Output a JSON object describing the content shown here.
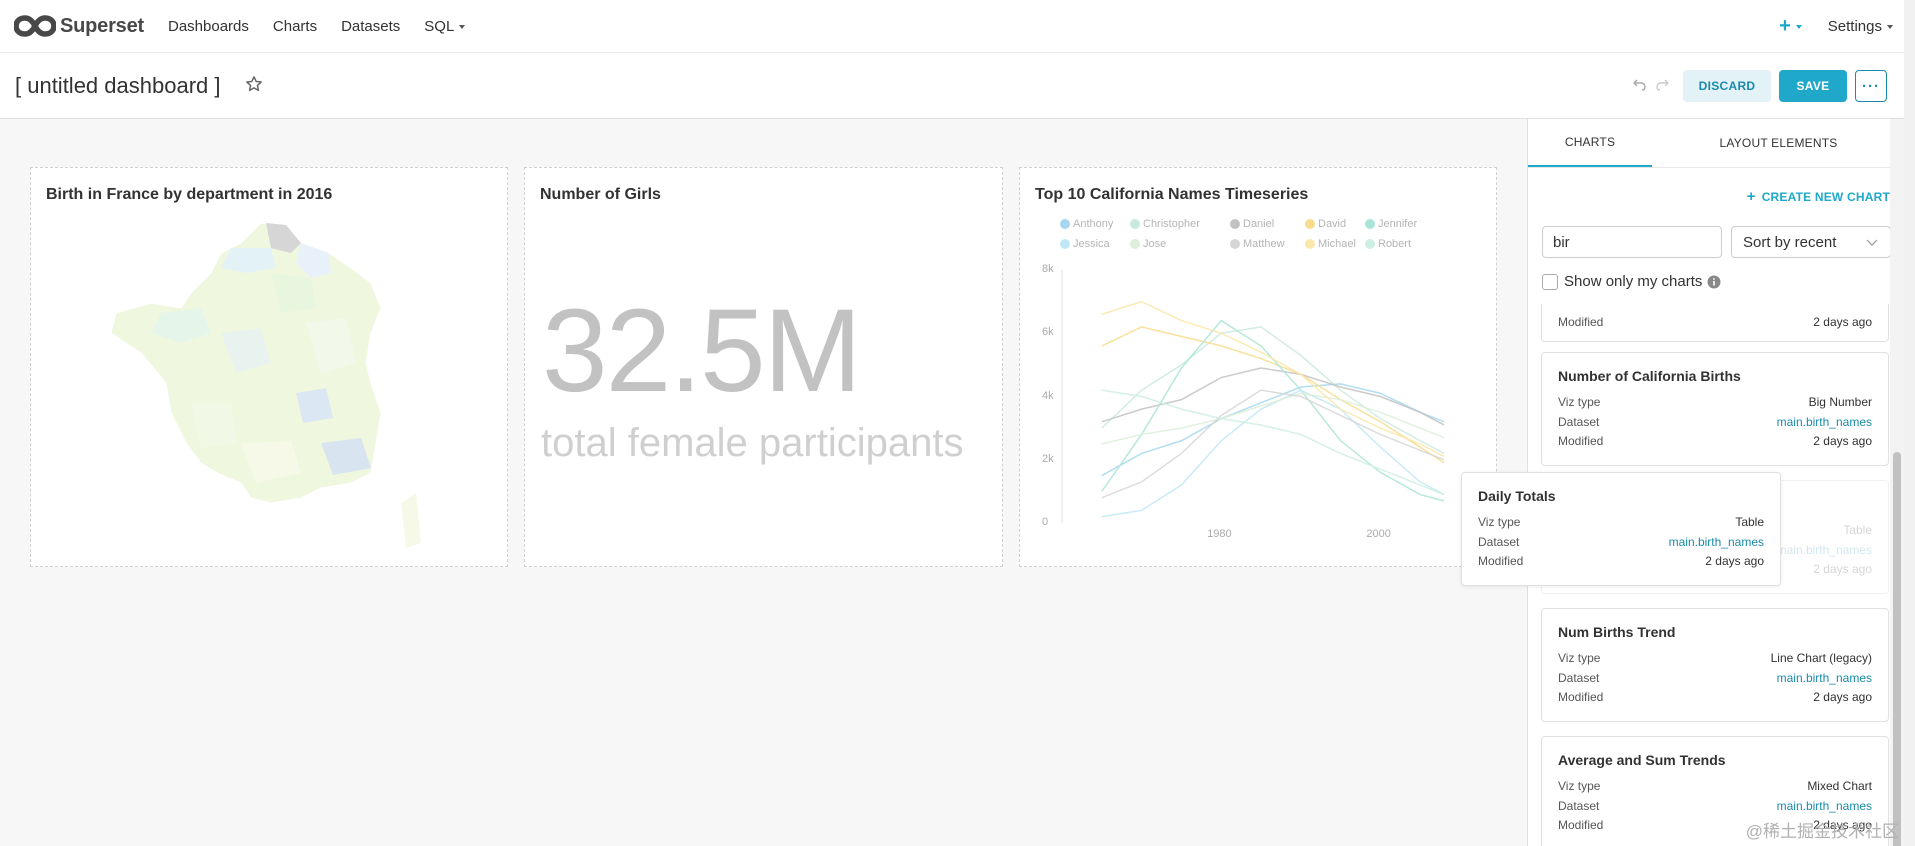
{
  "nav": {
    "brand": "Superset",
    "links": [
      "Dashboards",
      "Charts",
      "Datasets",
      "SQL"
    ],
    "plus": "+",
    "settings": "Settings"
  },
  "header": {
    "title": "[ untitled dashboard ]",
    "discard_label": "DISCARD",
    "save_label": "SAVE",
    "more_label": "···"
  },
  "charts": [
    {
      "title": "Birth in France by department in 2016"
    },
    {
      "title": "Number of Girls",
      "big_number": "32.5M",
      "subheader": "total female participants"
    },
    {
      "title": "Top 10 California Names Timeseries",
      "legend": [
        "Anthony",
        "Christopher",
        "Daniel",
        "David",
        "Jennifer",
        "Jessica",
        "Jose",
        "Matthew",
        "Michael",
        "Robert"
      ],
      "legend_colors": [
        "#a5d7f0",
        "#c9eadc",
        "#c2c2c2",
        "#f7dc8c",
        "#a9e4d6",
        "#bfe7f5",
        "#dcefd9",
        "#d6d6d6",
        "#f9e8a9",
        "#cdeee2"
      ],
      "y_ticks": [
        "8k",
        "6k",
        "4k",
        "2k",
        "0"
      ],
      "x_ticks": [
        "1980",
        "2000"
      ]
    }
  ],
  "chart_data": {
    "type": "line",
    "title": "Top 10 California Names Timeseries",
    "xlabel": "",
    "ylabel": "",
    "x": [
      1965,
      1970,
      1975,
      1980,
      1985,
      1990,
      1995,
      2000,
      2005,
      2008
    ],
    "ylim": [
      0,
      8000
    ],
    "series": [
      {
        "name": "Anthony",
        "values": [
          1500,
          2200,
          2600,
          3300,
          3800,
          4300,
          4400,
          4100,
          3500,
          3200
        ]
      },
      {
        "name": "Christopher",
        "values": [
          3000,
          4200,
          5000,
          6000,
          6200,
          5300,
          4200,
          3300,
          2600,
          2200
        ]
      },
      {
        "name": "Daniel",
        "values": [
          3200,
          3600,
          3900,
          4600,
          4900,
          4700,
          4300,
          4000,
          3500,
          3100
        ]
      },
      {
        "name": "David",
        "values": [
          5600,
          6200,
          5900,
          5600,
          5200,
          4700,
          3900,
          3200,
          2400,
          1900
        ]
      },
      {
        "name": "Jennifer",
        "values": [
          1000,
          2800,
          4900,
          6400,
          5600,
          4200,
          2600,
          1600,
          900,
          700
        ]
      },
      {
        "name": "Jessica",
        "values": [
          200,
          400,
          1200,
          2600,
          3600,
          4200,
          3600,
          2400,
          1300,
          900
        ]
      },
      {
        "name": "Jose",
        "values": [
          2500,
          2800,
          3000,
          3300,
          3700,
          4100,
          3900,
          3500,
          3000,
          2700
        ]
      },
      {
        "name": "Matthew",
        "values": [
          800,
          1300,
          2200,
          3400,
          4200,
          4000,
          3400,
          2800,
          2300,
          2000
        ]
      },
      {
        "name": "Michael",
        "values": [
          6600,
          7000,
          6400,
          6000,
          5400,
          4700,
          3600,
          3000,
          2500,
          2100
        ]
      },
      {
        "name": "Robert",
        "values": [
          4200,
          4000,
          3600,
          3300,
          3100,
          2800,
          2200,
          1700,
          1200,
          900
        ]
      }
    ]
  },
  "panel": {
    "tabs": [
      "CHARTS",
      "LAYOUT ELEMENTS"
    ],
    "create_chart": "CREATE NEW CHART",
    "search_value": "bir",
    "sort_value": "Sort by recent",
    "show_only_mine": "Show only my charts",
    "labels": {
      "viz": "Viz type",
      "dataset": "Dataset",
      "modified": "Modified"
    },
    "items": [
      {
        "title": "",
        "viz": "",
        "dataset": "",
        "modified": "2 days ago"
      },
      {
        "title": "Number of California Births",
        "viz": "Big Number",
        "dataset": "main.birth_names",
        "modified": "2 days ago"
      },
      {
        "title": "",
        "viz": "Table",
        "dataset": "main.birth_names",
        "modified": "2 days ago"
      },
      {
        "title": "Num Births Trend",
        "viz": "Line Chart (legacy)",
        "dataset": "main.birth_names",
        "modified": "2 days ago"
      },
      {
        "title": "Average and Sum Trends",
        "viz": "Mixed Chart",
        "dataset": "main.birth_names",
        "modified": "2 days ago"
      }
    ],
    "dragging": {
      "title": "Daily Totals",
      "viz": "Table",
      "dataset": "main.birth_names",
      "modified": "2 days ago"
    }
  },
  "watermark": "@稀土掘金技术社区",
  "colors": {
    "accent": "#1fa8c9",
    "link": "#1a8bab"
  }
}
